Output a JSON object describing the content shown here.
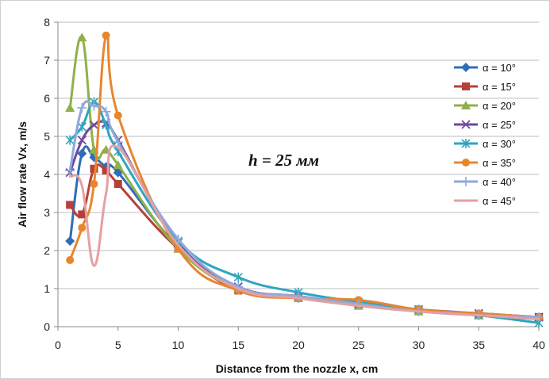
{
  "chart_data": {
    "type": "line",
    "xlabel": "Distance from the nozzle x, cm",
    "ylabel": "Air flow rate Vx, m/s",
    "xlim": [
      0,
      40
    ],
    "ylim": [
      0,
      8
    ],
    "x_ticks": [
      0,
      5,
      10,
      15,
      20,
      25,
      30,
      35,
      40
    ],
    "y_ticks": [
      0,
      1,
      2,
      3,
      4,
      5,
      6,
      7,
      8
    ],
    "grid": "horizontal",
    "legend_position": "right",
    "annotation": "h = 25 мм",
    "series": [
      {
        "name": "α = 10°",
        "color": "#2f6db7",
        "marker": "diamond",
        "x": [
          1,
          2,
          3,
          4,
          5,
          10,
          15,
          20,
          25,
          30,
          35,
          40
        ],
        "y": [
          2.25,
          4.55,
          4.45,
          4.2,
          4.05,
          2.1,
          1.0,
          0.75,
          0.6,
          0.45,
          0.3,
          0.2
        ]
      },
      {
        "name": "α = 15°",
        "color": "#b5403a",
        "marker": "square",
        "x": [
          1,
          2,
          3,
          4,
          5,
          10,
          15,
          20,
          25,
          30,
          35,
          40
        ],
        "y": [
          3.2,
          2.95,
          4.15,
          4.1,
          3.75,
          2.05,
          0.95,
          0.75,
          0.6,
          0.45,
          0.3,
          0.25
        ]
      },
      {
        "name": "α = 20°",
        "color": "#8fb04a",
        "marker": "triangle",
        "x": [
          1,
          2,
          3,
          4,
          5,
          10,
          15,
          20,
          25,
          30,
          35,
          40
        ],
        "y": [
          5.75,
          7.6,
          4.65,
          4.65,
          4.25,
          2.05,
          1.0,
          0.75,
          0.55,
          0.4,
          0.3,
          0.25
        ]
      },
      {
        "name": "α = 25°",
        "color": "#6e4a9e",
        "marker": "x",
        "x": [
          1,
          2,
          3,
          4,
          5,
          10,
          15,
          20,
          25,
          30,
          35,
          40
        ],
        "y": [
          4.05,
          4.9,
          5.3,
          5.35,
          4.9,
          2.2,
          1.05,
          0.8,
          0.6,
          0.45,
          0.35,
          0.25
        ]
      },
      {
        "name": "α = 30°",
        "color": "#2fa5c0",
        "marker": "star",
        "x": [
          1,
          2,
          3,
          4,
          5,
          10,
          15,
          20,
          25,
          30,
          35,
          40
        ],
        "y": [
          4.9,
          5.25,
          5.9,
          5.3,
          4.6,
          2.25,
          1.3,
          0.9,
          0.65,
          0.45,
          0.3,
          0.1
        ]
      },
      {
        "name": "α = 35°",
        "color": "#e8862e",
        "marker": "circle",
        "x": [
          1,
          2,
          3,
          4,
          5,
          10,
          15,
          20,
          25,
          30,
          35,
          40
        ],
        "y": [
          1.75,
          2.6,
          3.75,
          7.65,
          5.55,
          2.05,
          0.95,
          0.75,
          0.7,
          0.45,
          0.35,
          0.25
        ]
      },
      {
        "name": "α = 40°",
        "color": "#8ea9dc",
        "marker": "plus",
        "x": [
          1,
          2,
          3,
          4,
          5,
          10,
          15,
          20,
          25,
          30,
          35,
          40
        ],
        "y": [
          4.1,
          5.75,
          5.8,
          5.65,
          4.85,
          2.3,
          1.05,
          0.8,
          0.6,
          0.4,
          0.3,
          0.25
        ]
      },
      {
        "name": "α = 45°",
        "color": "#e4a0a2",
        "marker": "none",
        "x": [
          1,
          2,
          3,
          4,
          5,
          10,
          15,
          20,
          25,
          30,
          35,
          40
        ],
        "y": [
          3.95,
          3.7,
          1.6,
          3.5,
          4.7,
          2.15,
          1.0,
          0.75,
          0.55,
          0.4,
          0.3,
          0.2
        ]
      }
    ]
  }
}
